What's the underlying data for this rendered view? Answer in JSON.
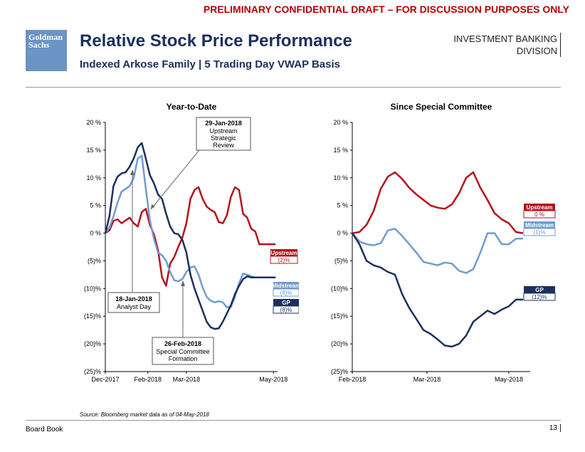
{
  "header": {
    "banner": "PRELIMINARY CONFIDENTIAL DRAFT – FOR DISCUSSION PURPOSES ONLY",
    "logo_line1": "Goldman",
    "logo_line2": "Sachs",
    "title": "Relative Stock Price Performance",
    "subtitle": "Indexed Arkose Family | 5 Trading Day VWAP Basis",
    "division_line1": "INVESTMENT BANKING",
    "division_line2": "DIVISION"
  },
  "footer": {
    "source": "Source: Bloomberg market data as of 04-May-2018",
    "left": "Board Book",
    "page": "13"
  },
  "colors": {
    "upstream": "#b5121b",
    "midstream": "#6f9bd1",
    "gp": "#1c2f5e"
  },
  "chart_data": [
    {
      "type": "line",
      "title": "Year-to-Date",
      "ylim": [
        -25,
        20
      ],
      "xlim": [
        0,
        85
      ],
      "yticks": [
        20,
        15,
        10,
        5,
        0,
        -5,
        -10,
        -15,
        -20,
        -25
      ],
      "ytick_labels": [
        "20 %",
        "15 %",
        "10 %",
        "5 %",
        "0 %",
        "(5)%",
        "(10)%",
        "(15)%",
        "(20)%",
        "(25)%"
      ],
      "xtick_positions": [
        0,
        21,
        40,
        83
      ],
      "xtick_labels": [
        "Dec-2017",
        "Feb-2018",
        "Mar-2018",
        "May-2018"
      ],
      "series": [
        {
          "name": "Upstream",
          "label": "(2)%",
          "color": "#b5121b",
          "x": [
            0,
            2,
            4,
            6,
            8,
            10,
            12,
            14,
            16,
            18,
            20,
            22,
            24,
            26,
            28,
            30,
            32,
            34,
            36,
            38,
            40,
            42,
            44,
            46,
            48,
            50,
            52,
            54,
            56,
            58,
            60,
            62,
            64,
            66,
            68,
            70,
            72,
            74,
            76,
            78,
            80,
            82,
            84
          ],
          "values": [
            0,
            0.5,
            2.2,
            2.5,
            1.8,
            2.3,
            2.8,
            1.8,
            1.2,
            3.8,
            4.4,
            1.5,
            -0.2,
            -3,
            -8,
            -9.5,
            -5.5,
            -4.3,
            -2.5,
            -0.8,
            1.8,
            6.2,
            7.8,
            8.3,
            6.2,
            4.8,
            4.2,
            3.8,
            2,
            1.8,
            3.2,
            6.6,
            8.3,
            7.8,
            3.5,
            2.8,
            0.8,
            0.3,
            -2,
            -2,
            -2,
            -2,
            -2
          ]
        },
        {
          "name": "Midstream",
          "label": "(8)%",
          "color": "#6f9bd1",
          "x": [
            0,
            2,
            4,
            6,
            8,
            10,
            12,
            14,
            16,
            18,
            20,
            22,
            24,
            26,
            28,
            30,
            32,
            34,
            36,
            38,
            40,
            42,
            44,
            46,
            48,
            50,
            52,
            54,
            56,
            58,
            60,
            62,
            64,
            66,
            68,
            70,
            72,
            74,
            76,
            78,
            80,
            82,
            84
          ],
          "values": [
            0,
            1,
            3,
            5.5,
            7.5,
            8,
            8.5,
            10,
            13.5,
            14,
            8,
            2.3,
            -1,
            -3.5,
            -4,
            -5,
            -7,
            -8.5,
            -8.7,
            -8.3,
            -7,
            -6.2,
            -6,
            -7.5,
            -9.8,
            -11.5,
            -12.2,
            -12.5,
            -12.3,
            -12.5,
            -13.4,
            -13.3,
            -11.5,
            -9,
            -7.3,
            -7.5,
            -7.8,
            -8,
            -8,
            -8,
            -8,
            -8,
            -8
          ]
        },
        {
          "name": "GP",
          "label": "(8)%",
          "color": "#1c2f5e",
          "x": [
            0,
            2,
            4,
            6,
            8,
            10,
            12,
            14,
            16,
            18,
            20,
            22,
            24,
            26,
            28,
            30,
            32,
            34,
            36,
            38,
            40,
            42,
            44,
            46,
            48,
            50,
            52,
            54,
            56,
            58,
            60,
            62,
            64,
            66,
            68,
            70,
            72,
            74,
            76,
            78,
            80,
            82,
            84
          ],
          "values": [
            0,
            3,
            8.5,
            10.2,
            10.8,
            11,
            12,
            13.5,
            15.5,
            16.3,
            13.5,
            10.5,
            9,
            7,
            6.2,
            3.5,
            1.2,
            0,
            -0.2,
            -1.2,
            -3.5,
            -7.5,
            -10,
            -12,
            -14,
            -16,
            -17,
            -17.3,
            -17.2,
            -16,
            -14.5,
            -13,
            -11,
            -9.5,
            -8.3,
            -7.8,
            -8,
            -8,
            -8,
            -8,
            -8,
            -8,
            -8
          ]
        }
      ],
      "annotations": [
        {
          "date": "29-Jan-2018",
          "line1": "Upstream",
          "line2": "Strategic",
          "line3": "Review"
        },
        {
          "date": "18-Jan-2018",
          "line1": "Analyst Day"
        },
        {
          "date": "26-Feb-2018",
          "line1": "Special Committee",
          "line2": "Formation"
        }
      ]
    },
    {
      "type": "line",
      "title": "Since Special Committee",
      "ylim": [
        -25,
        20
      ],
      "xlim": [
        0,
        50
      ],
      "yticks": [
        20,
        15,
        10,
        5,
        0,
        -5,
        -10,
        -15,
        -20,
        -25
      ],
      "ytick_labels": [
        "20 %",
        "15 %",
        "10 %",
        "5 %",
        "0 %",
        "(5)%",
        "(10)%",
        "(15)%",
        "(20)%",
        "(25)%"
      ],
      "xtick_positions": [
        0,
        21,
        44
      ],
      "xtick_labels": [
        "Feb-2018",
        "Mar-2018",
        "May-2018"
      ],
      "series": [
        {
          "name": "Upstream",
          "label": "0 %",
          "color": "#b5121b",
          "x": [
            0,
            2,
            4,
            6,
            8,
            10,
            12,
            14,
            16,
            18,
            20,
            22,
            24,
            26,
            28,
            30,
            32,
            34,
            36,
            38,
            40,
            42,
            44,
            46,
            48
          ],
          "values": [
            0,
            0.2,
            1.5,
            4,
            8,
            10.2,
            11,
            9.8,
            8.2,
            7,
            6,
            5,
            4.6,
            4.4,
            5.2,
            7.2,
            10,
            11,
            8.2,
            6,
            3.6,
            2.5,
            1.8,
            0.2,
            0
          ]
        },
        {
          "name": "Midstream",
          "label": "(1)%",
          "color": "#6f9bd1",
          "x": [
            0,
            2,
            4,
            6,
            8,
            10,
            12,
            14,
            16,
            18,
            20,
            22,
            24,
            26,
            28,
            30,
            32,
            34,
            36,
            38,
            40,
            42,
            44,
            46,
            48
          ],
          "values": [
            0,
            -1.5,
            -2,
            -2.2,
            -1.8,
            0.5,
            0.8,
            -0.5,
            -2,
            -3.5,
            -5.2,
            -5.5,
            -5.8,
            -5.3,
            -5.5,
            -6.8,
            -7.2,
            -6.5,
            -3.5,
            0,
            0,
            -2,
            -2,
            -1,
            -1
          ]
        },
        {
          "name": "GP",
          "label": "(12)%",
          "color": "#1c2f5e",
          "x": [
            0,
            2,
            4,
            6,
            8,
            10,
            12,
            14,
            16,
            18,
            20,
            22,
            24,
            26,
            28,
            30,
            32,
            34,
            36,
            38,
            40,
            42,
            44,
            46,
            48
          ],
          "values": [
            0,
            -2,
            -5,
            -5.8,
            -6.2,
            -7,
            -7.5,
            -11,
            -13.5,
            -15.5,
            -17.5,
            -18.2,
            -19.2,
            -20.3,
            -20.5,
            -20,
            -18.5,
            -16,
            -15,
            -14,
            -14.6,
            -13.8,
            -13.2,
            -12,
            -12
          ]
        }
      ]
    }
  ]
}
